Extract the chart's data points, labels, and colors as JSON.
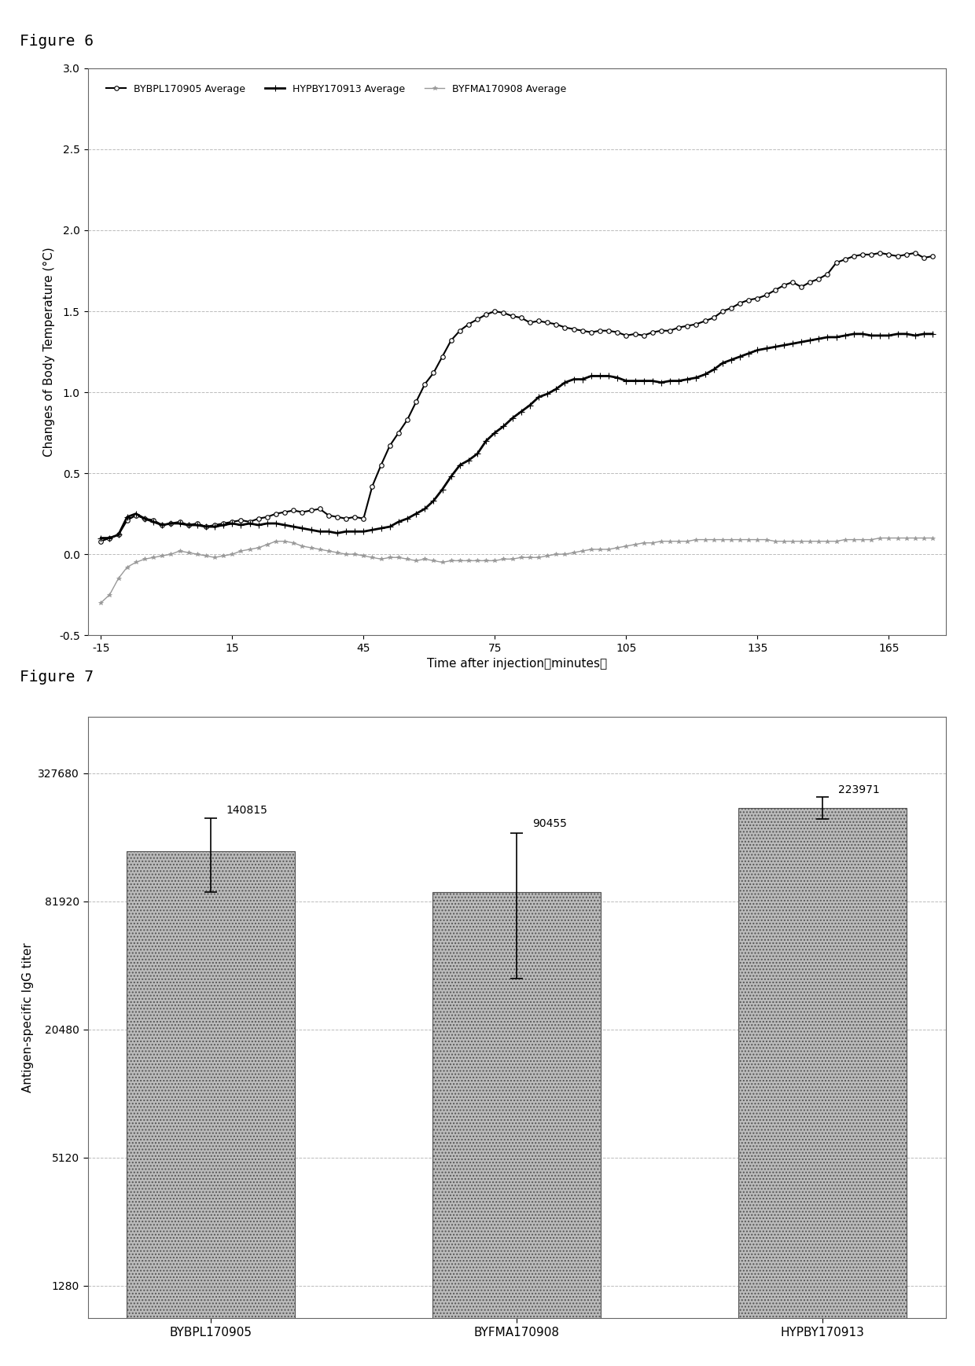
{
  "fig6_title": "Figure 6",
  "fig7_title": "Figure 7",
  "line_xlabel": "Time after injection（minutes）",
  "line_ylabel": "Changes of Body Temperature (°C)",
  "line_ylim": [
    -0.5,
    3.0
  ],
  "line_yticks": [
    -0.5,
    0.0,
    0.5,
    1.0,
    1.5,
    2.0,
    2.5,
    3.0
  ],
  "line_xticks": [
    -15,
    15,
    45,
    75,
    105,
    135,
    165
  ],
  "series1_label": "BYBPL170905 Average",
  "series1_color": "#000000",
  "series1_marker": "o",
  "series1_markerfacecolor": "white",
  "series1_linewidth": 1.5,
  "series1_x": [
    -15,
    -13,
    -11,
    -9,
    -7,
    -5,
    -3,
    -1,
    1,
    3,
    5,
    7,
    9,
    11,
    13,
    15,
    17,
    19,
    21,
    23,
    25,
    27,
    29,
    31,
    33,
    35,
    37,
    39,
    41,
    43,
    45,
    47,
    49,
    51,
    53,
    55,
    57,
    59,
    61,
    63,
    65,
    67,
    69,
    71,
    73,
    75,
    77,
    79,
    81,
    83,
    85,
    87,
    89,
    91,
    93,
    95,
    97,
    99,
    101,
    103,
    105,
    107,
    109,
    111,
    113,
    115,
    117,
    119,
    121,
    123,
    125,
    127,
    129,
    131,
    133,
    135,
    137,
    139,
    141,
    143,
    145,
    147,
    149,
    151,
    153,
    155,
    157,
    159,
    161,
    163,
    165,
    167,
    169,
    171,
    173,
    175
  ],
  "series1_y": [
    0.08,
    0.1,
    0.12,
    0.21,
    0.24,
    0.22,
    0.21,
    0.18,
    0.19,
    0.2,
    0.18,
    0.19,
    0.17,
    0.18,
    0.19,
    0.2,
    0.21,
    0.2,
    0.22,
    0.23,
    0.25,
    0.26,
    0.27,
    0.26,
    0.27,
    0.28,
    0.24,
    0.23,
    0.22,
    0.23,
    0.22,
    0.42,
    0.55,
    0.67,
    0.75,
    0.83,
    0.94,
    1.05,
    1.12,
    1.22,
    1.32,
    1.38,
    1.42,
    1.45,
    1.48,
    1.5,
    1.49,
    1.47,
    1.46,
    1.43,
    1.44,
    1.43,
    1.42,
    1.4,
    1.39,
    1.38,
    1.37,
    1.38,
    1.38,
    1.37,
    1.35,
    1.36,
    1.35,
    1.37,
    1.38,
    1.38,
    1.4,
    1.41,
    1.42,
    1.44,
    1.46,
    1.5,
    1.52,
    1.55,
    1.57,
    1.58,
    1.6,
    1.63,
    1.66,
    1.68,
    1.65,
    1.68,
    1.7,
    1.73,
    1.8,
    1.82,
    1.84,
    1.85,
    1.85,
    1.86,
    1.85,
    1.84,
    1.85,
    1.86,
    1.83,
    1.84
  ],
  "series2_label": "HYPBY170913 Average",
  "series2_color": "#000000",
  "series2_marker": "+",
  "series2_markerfacecolor": "#000000",
  "series2_linewidth": 2.0,
  "series2_x": [
    -15,
    -13,
    -11,
    -9,
    -7,
    -5,
    -3,
    -1,
    1,
    3,
    5,
    7,
    9,
    11,
    13,
    15,
    17,
    19,
    21,
    23,
    25,
    27,
    29,
    31,
    33,
    35,
    37,
    39,
    41,
    43,
    45,
    47,
    49,
    51,
    53,
    55,
    57,
    59,
    61,
    63,
    65,
    67,
    69,
    71,
    73,
    75,
    77,
    79,
    81,
    83,
    85,
    87,
    89,
    91,
    93,
    95,
    97,
    99,
    101,
    103,
    105,
    107,
    109,
    111,
    113,
    115,
    117,
    119,
    121,
    123,
    125,
    127,
    129,
    131,
    133,
    135,
    137,
    139,
    141,
    143,
    145,
    147,
    149,
    151,
    153,
    155,
    157,
    159,
    161,
    163,
    165,
    167,
    169,
    171,
    173,
    175
  ],
  "series2_y": [
    0.1,
    0.1,
    0.12,
    0.23,
    0.25,
    0.22,
    0.2,
    0.18,
    0.19,
    0.19,
    0.18,
    0.18,
    0.17,
    0.17,
    0.18,
    0.19,
    0.18,
    0.19,
    0.18,
    0.19,
    0.19,
    0.18,
    0.17,
    0.16,
    0.15,
    0.14,
    0.14,
    0.13,
    0.14,
    0.14,
    0.14,
    0.15,
    0.16,
    0.17,
    0.2,
    0.22,
    0.25,
    0.28,
    0.33,
    0.4,
    0.48,
    0.55,
    0.58,
    0.62,
    0.7,
    0.75,
    0.79,
    0.84,
    0.88,
    0.92,
    0.97,
    0.99,
    1.02,
    1.06,
    1.08,
    1.08,
    1.1,
    1.1,
    1.1,
    1.09,
    1.07,
    1.07,
    1.07,
    1.07,
    1.06,
    1.07,
    1.07,
    1.08,
    1.09,
    1.11,
    1.14,
    1.18,
    1.2,
    1.22,
    1.24,
    1.26,
    1.27,
    1.28,
    1.29,
    1.3,
    1.31,
    1.32,
    1.33,
    1.34,
    1.34,
    1.35,
    1.36,
    1.36,
    1.35,
    1.35,
    1.35,
    1.36,
    1.36,
    1.35,
    1.36,
    1.36
  ],
  "series3_label": "BYFMA170908 Average",
  "series3_color": "#999999",
  "series3_marker": "*",
  "series3_markerfacecolor": "#999999",
  "series3_linewidth": 1.0,
  "series3_x": [
    -15,
    -13,
    -11,
    -9,
    -7,
    -5,
    -3,
    -1,
    1,
    3,
    5,
    7,
    9,
    11,
    13,
    15,
    17,
    19,
    21,
    23,
    25,
    27,
    29,
    31,
    33,
    35,
    37,
    39,
    41,
    43,
    45,
    47,
    49,
    51,
    53,
    55,
    57,
    59,
    61,
    63,
    65,
    67,
    69,
    71,
    73,
    75,
    77,
    79,
    81,
    83,
    85,
    87,
    89,
    91,
    93,
    95,
    97,
    99,
    101,
    103,
    105,
    107,
    109,
    111,
    113,
    115,
    117,
    119,
    121,
    123,
    125,
    127,
    129,
    131,
    133,
    135,
    137,
    139,
    141,
    143,
    145,
    147,
    149,
    151,
    153,
    155,
    157,
    159,
    161,
    163,
    165,
    167,
    169,
    171,
    173,
    175
  ],
  "series3_y": [
    -0.3,
    -0.25,
    -0.15,
    -0.08,
    -0.05,
    -0.03,
    -0.02,
    -0.01,
    0.0,
    0.02,
    0.01,
    0.0,
    -0.01,
    -0.02,
    -0.01,
    0.0,
    0.02,
    0.03,
    0.04,
    0.06,
    0.08,
    0.08,
    0.07,
    0.05,
    0.04,
    0.03,
    0.02,
    0.01,
    0.0,
    0.0,
    -0.01,
    -0.02,
    -0.03,
    -0.02,
    -0.02,
    -0.03,
    -0.04,
    -0.03,
    -0.04,
    -0.05,
    -0.04,
    -0.04,
    -0.04,
    -0.04,
    -0.04,
    -0.04,
    -0.03,
    -0.03,
    -0.02,
    -0.02,
    -0.02,
    -0.01,
    0.0,
    0.0,
    0.01,
    0.02,
    0.03,
    0.03,
    0.03,
    0.04,
    0.05,
    0.06,
    0.07,
    0.07,
    0.08,
    0.08,
    0.08,
    0.08,
    0.09,
    0.09,
    0.09,
    0.09,
    0.09,
    0.09,
    0.09,
    0.09,
    0.09,
    0.08,
    0.08,
    0.08,
    0.08,
    0.08,
    0.08,
    0.08,
    0.08,
    0.09,
    0.09,
    0.09,
    0.09,
    0.1,
    0.1,
    0.1,
    0.1,
    0.1,
    0.1,
    0.1
  ],
  "bar_categories": [
    "BYBPL170905",
    "BYFMA170908",
    "HYPBY170913"
  ],
  "bar_values": [
    140815,
    90455,
    223971
  ],
  "bar_errors_upper": [
    60000,
    80000,
    30000
  ],
  "bar_errors_lower": [
    50000,
    55000,
    25000
  ],
  "bar_color": "#bbbbbb",
  "bar_ylabel": "Antigen-specific IgG titer",
  "bar_yticks": [
    1280,
    5120,
    20480,
    81920,
    327680
  ],
  "bar_ytick_labels": [
    "1280",
    "5120",
    "20480",
    "81920",
    "327680"
  ],
  "bar_ylim_log": [
    900,
    600000
  ],
  "bar_annotation_values": [
    "140815",
    "90455",
    "223971"
  ],
  "background_color": "#ffffff",
  "grid_color": "#aaaaaa",
  "box_color": "#555555"
}
